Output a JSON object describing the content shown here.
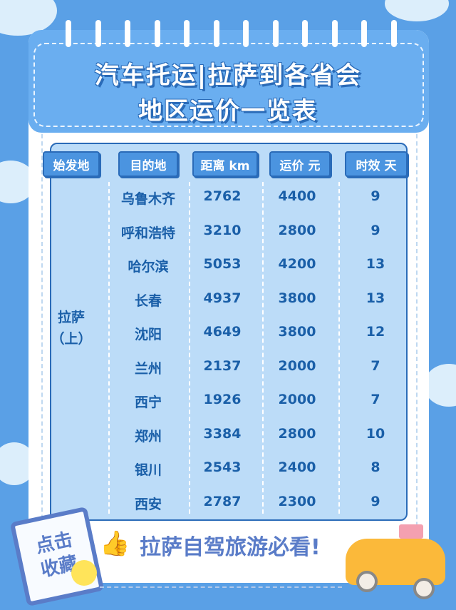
{
  "title": {
    "line1": "汽车托运|拉萨到各省会",
    "line2": "地区运价一览表"
  },
  "table": {
    "headers": [
      "始发地",
      "目的地",
      "距离 km",
      "运价 元",
      "时效 天"
    ],
    "origin": {
      "line1": "拉萨",
      "line2": "（上）"
    },
    "rows": [
      [
        "乌鲁木齐",
        "2762",
        "4400",
        "9"
      ],
      [
        "呼和浩特",
        "3210",
        "2800",
        "9"
      ],
      [
        "哈尔滨",
        "5053",
        "4200",
        "13"
      ],
      [
        "长春",
        "4937",
        "3800",
        "13"
      ],
      [
        "沈阳",
        "4649",
        "3800",
        "12"
      ],
      [
        "兰州",
        "2137",
        "2000",
        "7"
      ],
      [
        "西宁",
        "1926",
        "2000",
        "7"
      ],
      [
        "郑州",
        "3384",
        "2800",
        "10"
      ],
      [
        "银川",
        "2543",
        "2400",
        "8"
      ],
      [
        "西安",
        "2787",
        "2300",
        "9"
      ]
    ]
  },
  "footer": {
    "stamp_line1": "点击",
    "stamp_line2": "收藏",
    "slogan": "拉萨自驾旅游必看!"
  },
  "colors": {
    "background": "#5aa0e6",
    "header": "#6aaef0",
    "table": "#bcdcf8",
    "text": "#1a5fa8",
    "accent": "#5a7cc8"
  }
}
